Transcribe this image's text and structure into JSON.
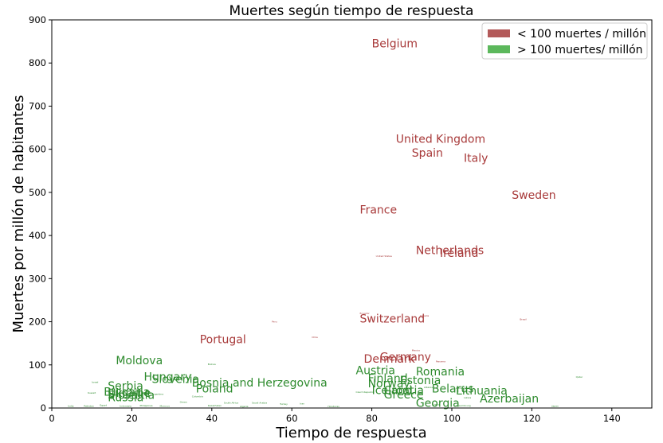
{
  "chart_data": {
    "type": "scatter",
    "title": "Muertes según tiempo de respuesta",
    "xlabel": "Tiempo de respuesta",
    "ylabel": "Muertes por millón de habitantes",
    "xlim": [
      0,
      150
    ],
    "ylim": [
      0,
      900
    ],
    "xticks": [
      0,
      20,
      40,
      60,
      80,
      100,
      120,
      140
    ],
    "yticks": [
      0,
      100,
      200,
      300,
      400,
      500,
      600,
      700,
      800,
      900
    ],
    "grid": false,
    "legend_position": "top-right",
    "colors": {
      "low": "#a83a3a",
      "high": "#2e8b2e"
    },
    "series": [
      {
        "name": "< 100 muertes / millón",
        "key": "low",
        "legend_color": "#b35a5a"
      },
      {
        "name": "> 100 muertes/ millón",
        "key": "high",
        "legend_color": "#5cb85c"
      }
    ],
    "points": [
      {
        "label": "Belgium",
        "x": 80,
        "y": 836,
        "size": 14,
        "series": "low"
      },
      {
        "label": "United Kingdom",
        "x": 86,
        "y": 615,
        "size": 14,
        "series": "low"
      },
      {
        "label": "Spain",
        "x": 90,
        "y": 583,
        "size": 14,
        "series": "low"
      },
      {
        "label": "Italy",
        "x": 103,
        "y": 571,
        "size": 14,
        "series": "low"
      },
      {
        "label": "Sweden",
        "x": 115,
        "y": 485,
        "size": 14,
        "series": "low"
      },
      {
        "label": "France",
        "x": 77,
        "y": 451,
        "size": 14,
        "series": "low"
      },
      {
        "label": "Netherlands",
        "x": 91,
        "y": 357,
        "size": 14,
        "series": "low"
      },
      {
        "label": "Ireland",
        "x": 97,
        "y": 350,
        "size": 14,
        "series": "low"
      },
      {
        "label": "Switzerland",
        "x": 77,
        "y": 198,
        "size": 14,
        "series": "low"
      },
      {
        "label": "Portugal",
        "x": 37,
        "y": 150,
        "size": 14,
        "series": "low"
      },
      {
        "label": "Germany",
        "x": 82,
        "y": 110,
        "size": 14,
        "series": "low"
      },
      {
        "label": "Denmark",
        "x": 78,
        "y": 105,
        "size": 14,
        "series": "low"
      },
      {
        "label": "Moldova",
        "x": 16,
        "y": 101,
        "size": 14,
        "series": "high"
      },
      {
        "label": "Austria",
        "x": 76,
        "y": 78,
        "size": 14,
        "series": "high"
      },
      {
        "label": "Romania",
        "x": 91,
        "y": 76,
        "size": 14,
        "series": "high"
      },
      {
        "label": "Hungary",
        "x": 23,
        "y": 64,
        "size": 14,
        "series": "high"
      },
      {
        "label": "Finland",
        "x": 79,
        "y": 60,
        "size": 14,
        "series": "high"
      },
      {
        "label": "Estonia",
        "x": 87,
        "y": 55,
        "size": 14,
        "series": "high"
      },
      {
        "label": "Slovenia",
        "x": 25,
        "y": 58,
        "size": 14,
        "series": "high"
      },
      {
        "label": "Bosnia and Herzegovina",
        "x": 35,
        "y": 50,
        "size": 14,
        "series": "high"
      },
      {
        "label": "Norway",
        "x": 79,
        "y": 48,
        "size": 14,
        "series": "high"
      },
      {
        "label": "Serbia",
        "x": 14,
        "y": 42,
        "size": 14,
        "series": "high"
      },
      {
        "label": "Poland",
        "x": 36,
        "y": 36,
        "size": 14,
        "series": "high"
      },
      {
        "label": "Belarus",
        "x": 95,
        "y": 36,
        "size": 14,
        "series": "high"
      },
      {
        "label": "Lithuania",
        "x": 101,
        "y": 31,
        "size": 14,
        "series": "high"
      },
      {
        "label": "Iceland",
        "x": 80,
        "y": 32,
        "size": 14,
        "series": "high"
      },
      {
        "label": "Croatia",
        "x": 83,
        "y": 32,
        "size": 14,
        "series": "high"
      },
      {
        "label": "Bulgaria",
        "x": 13,
        "y": 29,
        "size": 14,
        "series": "high"
      },
      {
        "label": "Ukraine",
        "x": 14,
        "y": 26,
        "size": 14,
        "series": "high"
      },
      {
        "label": "Slovakia",
        "x": 14,
        "y": 21,
        "size": 14,
        "series": "high"
      },
      {
        "label": "Greece",
        "x": 83,
        "y": 22,
        "size": 14,
        "series": "high"
      },
      {
        "label": "Russia",
        "x": 14,
        "y": 16,
        "size": 14,
        "series": "high"
      },
      {
        "label": "Azerbaijan",
        "x": 107,
        "y": 13,
        "size": 14,
        "series": "high"
      },
      {
        "label": "Georgia",
        "x": 91,
        "y": 3,
        "size": 14,
        "series": "high"
      },
      {
        "label": "United States",
        "x": 81,
        "y": 350,
        "size": 3,
        "series": "low"
      },
      {
        "label": "Peru",
        "x": 55,
        "y": 198,
        "size": 3,
        "series": "low"
      },
      {
        "label": "Brazil",
        "x": 117,
        "y": 204,
        "size": 3,
        "series": "low"
      },
      {
        "label": "Canada",
        "x": 92,
        "y": 212,
        "size": 3,
        "series": "low"
      },
      {
        "label": "Ecuador",
        "x": 77,
        "y": 218,
        "size": 3,
        "series": "low"
      },
      {
        "label": "Chile",
        "x": 65,
        "y": 162,
        "size": 3,
        "series": "low"
      },
      {
        "label": "Mexico",
        "x": 90,
        "y": 132,
        "size": 3,
        "series": "low"
      },
      {
        "label": "Panama",
        "x": 96,
        "y": 106,
        "size": 3,
        "series": "low"
      },
      {
        "label": "Bolivia",
        "x": 39,
        "y": 100,
        "size": 3,
        "series": "high"
      },
      {
        "label": "Qatar",
        "x": 131,
        "y": 70,
        "size": 3,
        "series": "high"
      },
      {
        "label": "Israel",
        "x": 10,
        "y": 58,
        "size": 3,
        "series": "high"
      },
      {
        "label": "Albania",
        "x": 93,
        "y": 46,
        "size": 3,
        "series": "high"
      },
      {
        "label": "Armenia",
        "x": 101,
        "y": 44,
        "size": 3,
        "series": "high"
      },
      {
        "label": "Czech Republic",
        "x": 76,
        "y": 35,
        "size": 3,
        "series": "high"
      },
      {
        "label": "Kuwait",
        "x": 9,
        "y": 33,
        "size": 3,
        "series": "high"
      },
      {
        "label": "Argentina",
        "x": 25,
        "y": 30,
        "size": 3,
        "series": "high"
      },
      {
        "label": "Latvia",
        "x": 103,
        "y": 22,
        "size": 3,
        "series": "high"
      },
      {
        "label": "Colombia",
        "x": 35,
        "y": 25,
        "size": 3,
        "series": "high"
      },
      {
        "label": "Oman",
        "x": 32,
        "y": 12,
        "size": 3,
        "series": "high"
      },
      {
        "label": "South Africa",
        "x": 43,
        "y": 10,
        "size": 3,
        "series": "high"
      },
      {
        "label": "Saudi Arabia",
        "x": 50,
        "y": 10,
        "size": 3,
        "series": "high"
      },
      {
        "label": "Turkey",
        "x": 57,
        "y": 7,
        "size": 3,
        "series": "high"
      },
      {
        "label": "Iran",
        "x": 62,
        "y": 8,
        "size": 3,
        "series": "high"
      },
      {
        "label": "Honduras",
        "x": 69,
        "y": 2,
        "size": 3,
        "series": "high"
      },
      {
        "label": "Cyprus",
        "x": 95,
        "y": 6,
        "size": 3,
        "series": "high"
      },
      {
        "label": "Luxembourg",
        "x": 101,
        "y": 4,
        "size": 3,
        "series": "high"
      },
      {
        "label": "Japan",
        "x": 125,
        "y": 3,
        "size": 3,
        "series": "high"
      },
      {
        "label": "India",
        "x": 4,
        "y": 3,
        "size": 3,
        "series": "high"
      },
      {
        "label": "Pakistan",
        "x": 8,
        "y": 3,
        "size": 3,
        "series": "high"
      },
      {
        "label": "Egypt",
        "x": 12,
        "y": 5,
        "size": 3,
        "series": "high"
      },
      {
        "label": "Indonesia",
        "x": 17,
        "y": 3,
        "size": 3,
        "series": "high"
      },
      {
        "label": "Philippines",
        "x": 22,
        "y": 4,
        "size": 3,
        "series": "high"
      },
      {
        "label": "Morocco",
        "x": 27,
        "y": 3,
        "size": 3,
        "series": "high"
      },
      {
        "label": "Kazakhstan",
        "x": 39,
        "y": 4,
        "size": 3,
        "series": "high"
      },
      {
        "label": "Algeria",
        "x": 47,
        "y": 2,
        "size": 3,
        "series": "high"
      }
    ]
  }
}
